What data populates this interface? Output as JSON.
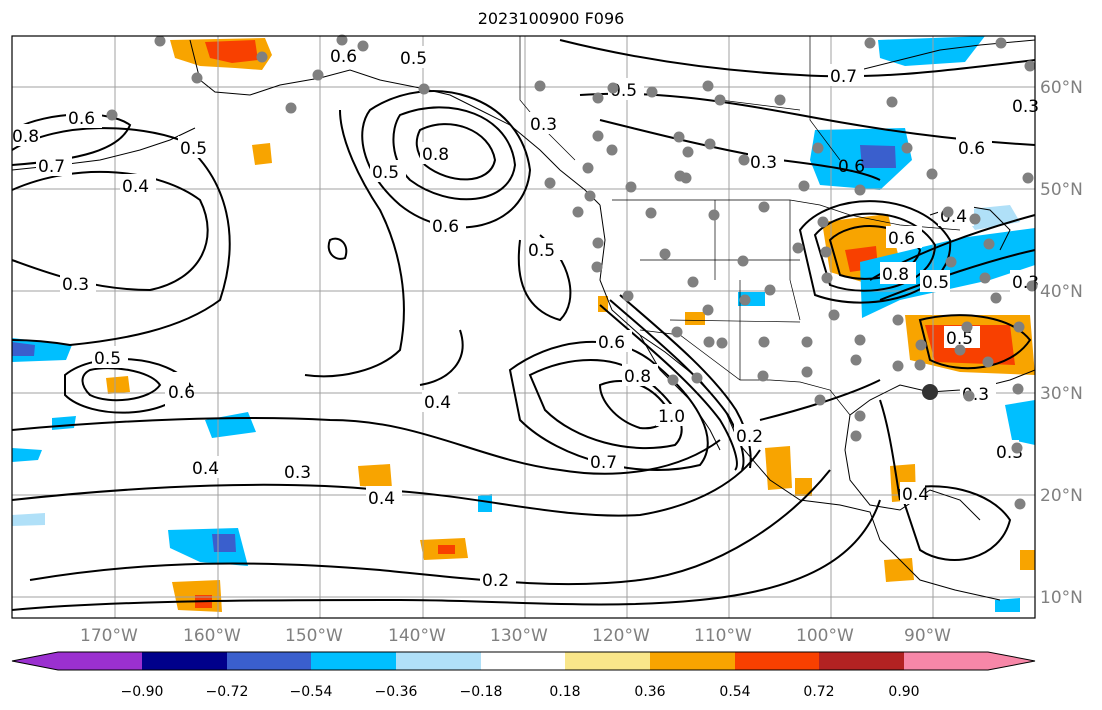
{
  "title": "2023100900 F096",
  "longitude_labels": [
    "170°W",
    "160°W",
    "150°W",
    "140°W",
    "130°W",
    "120°W",
    "110°W",
    "100°W",
    "90°W"
  ],
  "latitude_labels": [
    "60°N",
    "50°N",
    "40°N",
    "30°N",
    "20°N",
    "10°N"
  ],
  "contour_labels": [
    "0.6",
    "0.5",
    "0.5",
    "0.7",
    "0.3",
    "0.6",
    "0.8",
    "0.7",
    "0.4",
    "0.3",
    "0.6",
    "0.5",
    "0.8",
    "0.5",
    "0.6",
    "0.3",
    "0.5",
    "0.4",
    "0.6",
    "0.8",
    "0.5",
    "0.4",
    "0.3",
    "0.4",
    "0.5",
    "0.6",
    "0.6",
    "0.8",
    "1.0",
    "0.2",
    "0.7",
    "0.3",
    "0.6",
    "0.3",
    "0.2",
    "0.4",
    "0.4",
    "0.3",
    "0.5",
    "0.3"
  ],
  "colorbar": {
    "tick_labels": [
      "−0.90",
      "−0.72",
      "−0.54",
      "−0.36",
      "−0.18",
      "0.18",
      "0.36",
      "0.54",
      "0.72",
      "0.90"
    ],
    "colors": [
      "#9b30d0",
      "#00008b",
      "#3a5fcd",
      "#00bfff",
      "#b0e0f8",
      "#ffffff",
      "#f9e68a",
      "#f8a400",
      "#f84000",
      "#b22222",
      "#f787a8"
    ]
  },
  "station_marker_color": "#808080",
  "colors": {
    "contour": "#000000",
    "grid": "#a0a0a0",
    "coast": "#000000",
    "label": "#808080"
  }
}
